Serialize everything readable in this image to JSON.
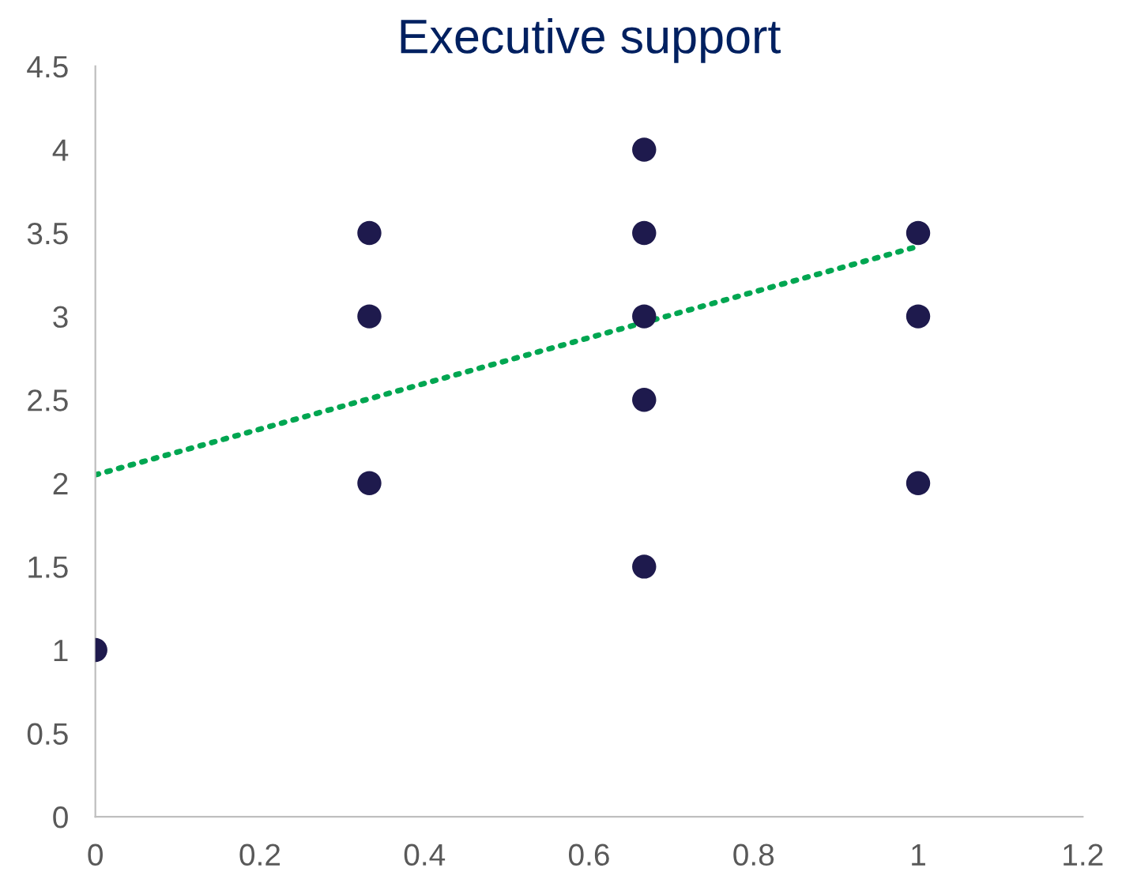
{
  "chart_data": {
    "type": "scatter",
    "title": "Executive support",
    "series": [
      {
        "color": "#1e1a4d",
        "marker": "circle",
        "x": [
          0,
          0.333,
          0.333,
          0.333,
          0.667,
          0.667,
          0.667,
          0.667,
          0.667,
          1,
          1,
          1
        ],
        "values": [
          1,
          3.5,
          3,
          2,
          4,
          3.5,
          3,
          2.5,
          1.5,
          3.5,
          3,
          2
        ]
      },
      {
        "type": "line",
        "color": "#00a651",
        "line_style": "dotted",
        "marker": "none",
        "x": [
          0,
          1
        ],
        "values": [
          2.05,
          3.42
        ]
      }
    ],
    "xlim": [
      0,
      1.2
    ],
    "xticks": [
      0,
      0.2,
      0.4,
      0.6,
      0.8,
      1,
      1.2
    ],
    "ylim": [
      0,
      4.5
    ],
    "yticks": [
      0,
      0.5,
      1,
      1.5,
      2,
      2.5,
      3,
      3.5,
      4,
      4.5
    ],
    "grid": false
  }
}
